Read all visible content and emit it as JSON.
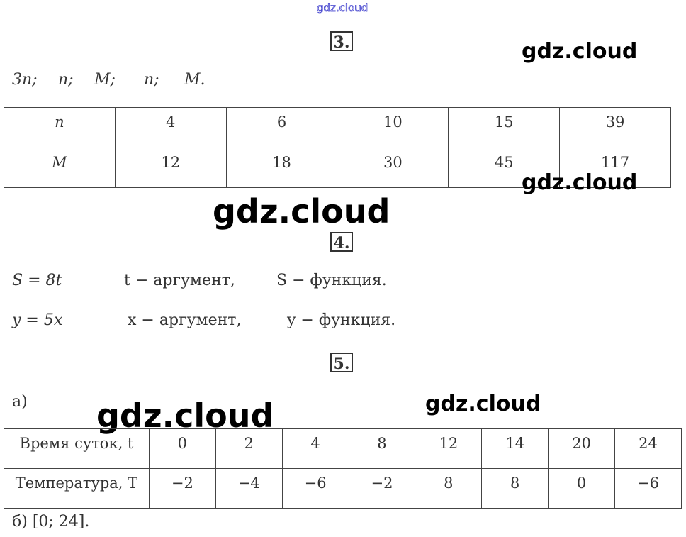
{
  "watermarks": {
    "top": "gdz.cloud",
    "large": "gdz.cloud"
  },
  "task3": {
    "number": "3.",
    "intro": [
      "3n;",
      "n;",
      "M;",
      "n;",
      "M."
    ],
    "table": {
      "rows": [
        {
          "header": "n",
          "values": [
            "4",
            "6",
            "10",
            "15",
            "39"
          ]
        },
        {
          "header": "M",
          "values": [
            "12",
            "18",
            "30",
            "45",
            "117"
          ]
        }
      ]
    }
  },
  "task4": {
    "number": "4.",
    "lines": [
      {
        "formula": "S = 8t",
        "argument": "t − аргумент,",
        "function": "S − функция."
      },
      {
        "formula": "y = 5x",
        "argument": "x − аргумент,",
        "function": "y − функция."
      }
    ]
  },
  "task5": {
    "number": "5.",
    "part_a": "а)",
    "table": {
      "rows": [
        {
          "header": "Время суток, t",
          "values": [
            "0",
            "2",
            "4",
            "8",
            "12",
            "14",
            "20",
            "24"
          ]
        },
        {
          "header": "Температура, T",
          "values": [
            "−2",
            "−4",
            "−6",
            "−2",
            "8",
            "8",
            "0",
            "−6"
          ]
        }
      ]
    },
    "part_b": "б) [0; 24]."
  }
}
